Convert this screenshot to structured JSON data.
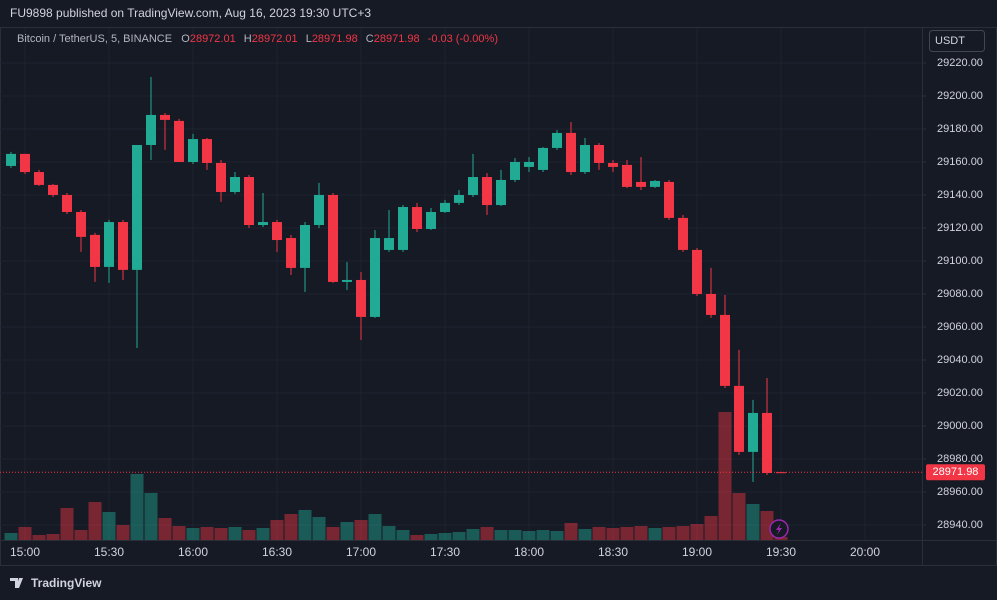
{
  "header": {
    "title": "FU9898 published on TradingView.com, Aug 16, 2023 19:30 UTC+3"
  },
  "footer": {
    "brand": "TradingView"
  },
  "chart_data": {
    "type": "candlestick",
    "symbol": "Bitcoin / TetherUS, 5, BINANCE",
    "ohlc_labels": [
      "O",
      "H",
      "L",
      "C"
    ],
    "change": "-0.03 (-0.00%)",
    "currency": "USDT",
    "categories": [
      null,
      "15:00",
      null,
      null,
      null,
      null,
      null,
      "15:30",
      null,
      null,
      null,
      null,
      null,
      "16:00",
      null,
      null,
      null,
      null,
      null,
      "16:30",
      null,
      null,
      null,
      null,
      null,
      "17:00",
      null,
      null,
      null,
      null,
      null,
      "17:30",
      null,
      null,
      null,
      null,
      null,
      "18:00",
      null,
      null,
      null,
      null,
      null,
      "18:30",
      null,
      null,
      null,
      null,
      null,
      "19:00",
      null,
      null,
      null,
      null,
      null,
      "19:30"
    ],
    "xticks_beyond": [
      "20:00"
    ],
    "open": [
      29157.6,
      29164.9,
      29153.9,
      29146.1,
      29140,
      29129.7,
      29115.8,
      29096.4,
      29123.6,
      29094.6,
      29170.3,
      29188.5,
      29184.9,
      29160,
      29173.9,
      29159.4,
      29141.8,
      29150.9,
      29121.8,
      29123.6,
      29113.9,
      29095.8,
      29121.8,
      29140,
      29087.3,
      29088.5,
      29066.1,
      29106.7,
      29106.7,
      29132.7,
      29119.4,
      29129.7,
      29135.2,
      29140,
      29150.9,
      29133.9,
      29149.1,
      29157,
      29155.2,
      29168.5,
      29177.6,
      29153.9,
      29170.3,
      29159.4,
      29158.2,
      29147.9,
      29144.9,
      29147.9,
      29126.1,
      29106.7,
      29080,
      29067.3,
      29024.3,
      28984.3,
      29007.9,
      28972.01
    ],
    "high": [
      29166.1,
      29164.9,
      29155.2,
      29146.7,
      29141.2,
      29130.9,
      29117,
      29124.9,
      29124.9,
      29170.3,
      29211.5,
      29189.7,
      29186.1,
      29177,
      29174.5,
      29161.2,
      29153.9,
      29152.1,
      29141.2,
      29124.9,
      29115.8,
      29123.6,
      29147.3,
      29141.2,
      29099.4,
      29093.3,
      29118.8,
      29130.9,
      29133.9,
      29135.2,
      29132.1,
      29137,
      29143,
      29164.9,
      29153.3,
      29155.2,
      29162.4,
      29163,
      29169.1,
      29179.4,
      29184.2,
      29174.5,
      29171.5,
      29161.2,
      29161.2,
      29163,
      29149.1,
      29149.1,
      29127.9,
      29107.9,
      29095.8,
      29079.4,
      29046.1,
      29015.8,
      29029.1,
      28972.01
    ],
    "low": [
      29156.4,
      29152.7,
      29145.5,
      29138.8,
      29128.5,
      29105.5,
      29087.3,
      29086.7,
      29088.5,
      29047.3,
      29161.2,
      29167.3,
      29160,
      29158.8,
      29155.2,
      29135.8,
      29140.6,
      29120,
      29120.6,
      29105.5,
      29091.5,
      29081.2,
      29120,
      29086.7,
      29082.4,
      29052.1,
      29065.5,
      29105.5,
      29105.5,
      29117.6,
      29118.8,
      29129.1,
      29133.9,
      29138.8,
      29127.9,
      29133.3,
      29147.9,
      29153.9,
      29153.9,
      29167.3,
      29152.1,
      29152.7,
      29155.2,
      29153.9,
      29144.2,
      29143,
      29144.2,
      29124.9,
      29105.5,
      29078.8,
      29065.5,
      29023,
      28982.4,
      28966.1,
      28970.3,
      28971.98
    ],
    "close": [
      29164.9,
      29153.9,
      29146.1,
      29140,
      29129.7,
      29114.6,
      29096.4,
      29123.6,
      29094.6,
      29170.3,
      29188.5,
      29185.5,
      29160,
      29173.9,
      29159.4,
      29141.8,
      29150.9,
      29121.8,
      29123.6,
      29112.7,
      29095.8,
      29121.8,
      29140,
      29087.3,
      29088.5,
      29066.1,
      29113.9,
      29113.9,
      29132.7,
      29119.4,
      29129.7,
      29135.2,
      29140,
      29150.9,
      29133.9,
      29149.1,
      29160,
      29160,
      29168.5,
      29177.6,
      29153.9,
      29170.3,
      29159.4,
      29157,
      29144.9,
      29144.9,
      29148.5,
      29126.1,
      29106.7,
      29080,
      29067.3,
      29024.3,
      28984.3,
      29007.9,
      28971.5,
      28971.98
    ],
    "volume": [
      7,
      13,
      5,
      6,
      32,
      10,
      38,
      28,
      15,
      66,
      47,
      22,
      14,
      12,
      13,
      12,
      13,
      10,
      12,
      20,
      26,
      30,
      23,
      13,
      18,
      20,
      26,
      14,
      10,
      5,
      6,
      7,
      8,
      11,
      13,
      10,
      10,
      9,
      10,
      9,
      17,
      11,
      13,
      12,
      13,
      14,
      12,
      13,
      14,
      16,
      24,
      128,
      47,
      36,
      29,
      3
    ],
    "up_color": "#22ab94",
    "down_color": "#f23645",
    "ylim": [
      28930.9,
      29241.2
    ],
    "yticks": [
      {
        "value": 28940,
        "label": "28940.00"
      },
      {
        "value": 28960,
        "label": "28960.00"
      },
      {
        "value": 28980,
        "label": "28980.00"
      },
      {
        "value": 29000,
        "label": "29000.00"
      },
      {
        "value": 29020,
        "label": "29020.00"
      },
      {
        "value": 29040,
        "label": "29040.00"
      },
      {
        "value": 29060,
        "label": "29060.00"
      },
      {
        "value": 29080,
        "label": "29080.00"
      },
      {
        "value": 29100,
        "label": "29100.00"
      },
      {
        "value": 29120,
        "label": "29120.00"
      },
      {
        "value": 29140,
        "label": "29140.00"
      },
      {
        "value": 29160,
        "label": "29160.00"
      },
      {
        "value": 29180,
        "label": "29180.00"
      },
      {
        "value": 29200,
        "label": "29200.00"
      },
      {
        "value": 29220,
        "label": "29220.00"
      }
    ],
    "grid": true
  }
}
